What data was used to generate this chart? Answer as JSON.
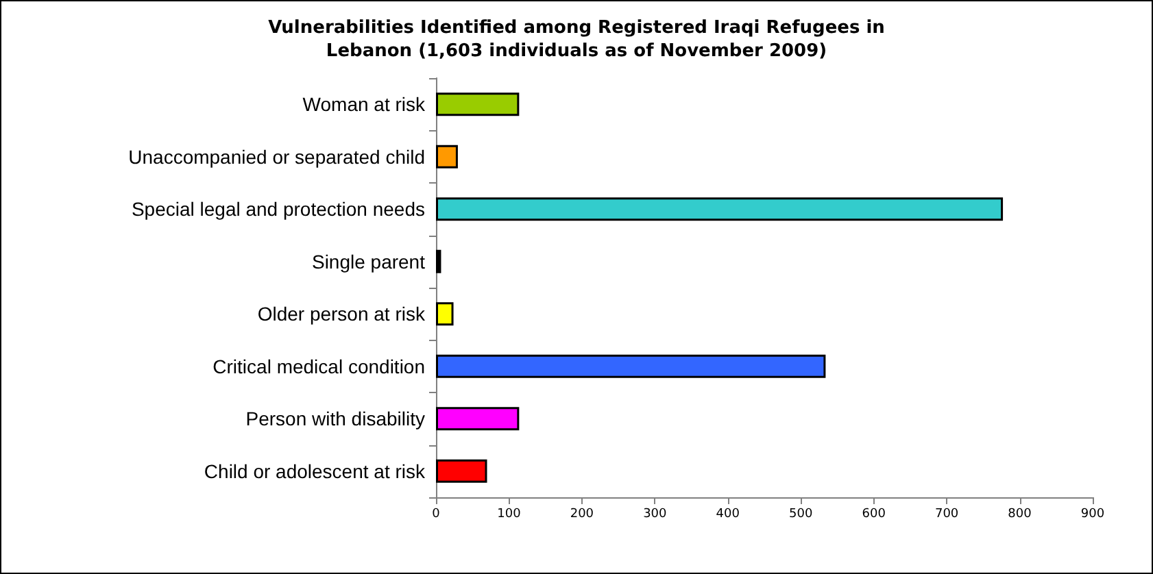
{
  "chart_data": {
    "type": "bar",
    "orientation": "horizontal",
    "title": "Vulnerabilities Identified among Registered Iraqi Refugees in\nLebanon (1,603 individuals as of November 2009)",
    "categories": [
      "Woman at risk",
      "Unaccompanied or separated child",
      "Special legal and protection needs",
      "Single parent",
      "Older person at risk",
      "Critical medical condition",
      "Person with disability",
      "Child or adolescent at risk"
    ],
    "values": [
      114,
      30,
      777,
      7,
      24,
      534,
      114,
      70
    ],
    "colors": [
      "#99cc00",
      "#ff9900",
      "#33cccc",
      "#000000",
      "#ffff00",
      "#3366ff",
      "#ff00ff",
      "#ff0000"
    ],
    "xlim": [
      0,
      900
    ],
    "xticks": [
      0,
      100,
      200,
      300,
      400,
      500,
      600,
      700,
      800,
      900
    ]
  }
}
